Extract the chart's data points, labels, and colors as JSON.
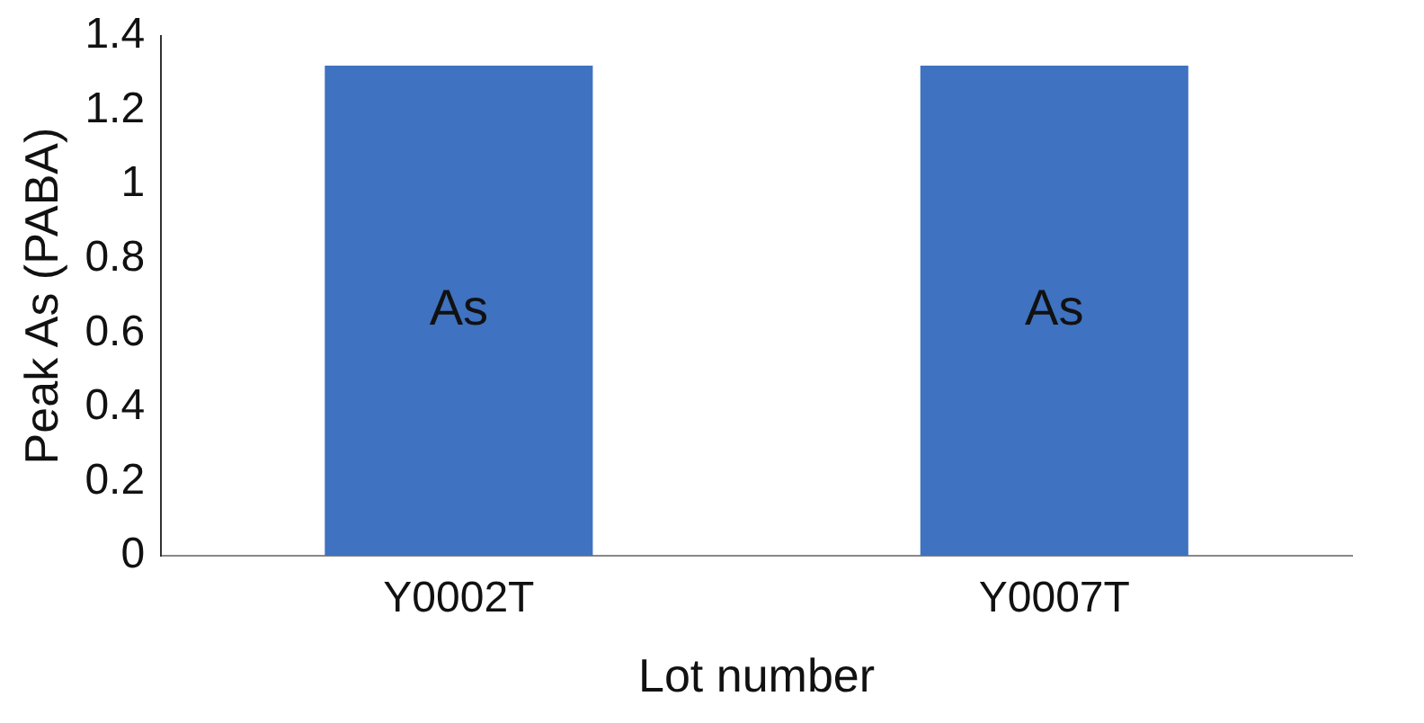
{
  "chart_data": {
    "type": "bar",
    "xlabel": "Lot number",
    "ylabel": "Peak As (PABA)",
    "categories": [
      "Y0002T",
      "Y0007T"
    ],
    "series": [
      {
        "color": "#3f72c0",
        "values": [
          1.32,
          1.32
        ]
      }
    ],
    "ylim": [
      0,
      1.4
    ],
    "yticks": [
      0,
      0.2,
      0.4,
      0.6,
      0.8,
      1,
      1.2,
      1.4
    ],
    "annotations": [
      "As",
      "As"
    ],
    "grid": false,
    "legend": false
  }
}
